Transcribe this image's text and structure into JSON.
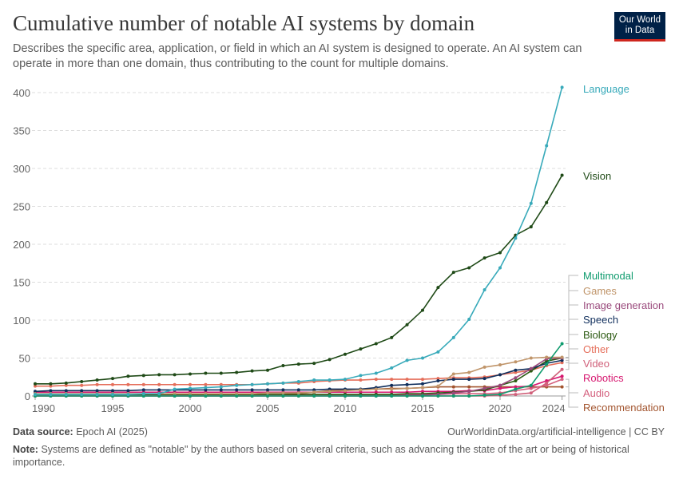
{
  "header": {
    "title": "Cumulative number of notable AI systems by domain",
    "subtitle": "Describes the specific area, application, or field in which an AI system is designed to operate. An AI system can operate in more than one domain, thus contributing to the count for multiple domains.",
    "logo": "Our World in Data"
  },
  "footer": {
    "source_label": "Data source:",
    "source": "Epoch AI (2025)",
    "url": "OurWorldinData.org/artificial-intelligence | CC BY",
    "note_label": "Note:",
    "note": "Systems are defined as \"notable\" by the authors based on several criteria, such as advancing the state of the art or being of historical importance."
  },
  "chart_data": {
    "type": "line",
    "title": "Cumulative number of notable AI systems by domain",
    "xlim": [
      1990,
      2024
    ],
    "ylim": [
      0,
      400
    ],
    "x_ticks": [
      "1990",
      "1995",
      "2000",
      "2005",
      "2010",
      "2015",
      "2020",
      "2024"
    ],
    "y_ticks": [
      "0",
      "50",
      "100",
      "150",
      "200",
      "250",
      "300",
      "350",
      "400"
    ],
    "grid": "horizontal-dashed",
    "legend": "right-labels",
    "x": [
      1990,
      1991,
      1992,
      1993,
      1994,
      1995,
      1996,
      1997,
      1998,
      1999,
      2000,
      2001,
      2002,
      2003,
      2004,
      2005,
      2006,
      2007,
      2008,
      2009,
      2010,
      2011,
      2012,
      2013,
      2014,
      2015,
      2016,
      2017,
      2018,
      2019,
      2020,
      2021,
      2022,
      2023,
      2024
    ],
    "series": [
      {
        "name": "Language",
        "color": "#38aaba",
        "values": [
          2,
          2,
          2,
          2,
          2,
          2,
          2,
          3,
          3,
          9,
          10,
          11,
          12,
          14,
          15,
          16,
          17,
          19,
          21,
          21,
          22,
          27,
          30,
          37,
          47,
          50,
          58,
          77,
          101,
          140,
          169,
          208,
          254,
          330,
          407
        ]
      },
      {
        "name": "Vision",
        "color": "#1f4a17",
        "values": [
          16,
          16,
          17,
          19,
          21,
          23,
          26,
          27,
          28,
          28,
          29,
          30,
          30,
          31,
          33,
          34,
          40,
          42,
          43,
          48,
          55,
          62,
          69,
          77,
          94,
          113,
          143,
          163,
          169,
          182,
          189,
          212,
          223,
          255,
          291
        ]
      },
      {
        "name": "Multimodal",
        "color": "#0f9b6e",
        "values": [
          0,
          0,
          0,
          0,
          0,
          0,
          0,
          0,
          0,
          0,
          0,
          0,
          0,
          0,
          0,
          0,
          0,
          0,
          0,
          0,
          0,
          0,
          0,
          0,
          0,
          0,
          0,
          0,
          0,
          1,
          2,
          9,
          14,
          42,
          69
        ]
      },
      {
        "name": "Games",
        "color": "#c0956a",
        "values": [
          3,
          3,
          3,
          3,
          3,
          3,
          3,
          3,
          3,
          3,
          3,
          3,
          3,
          3,
          3,
          4,
          4,
          4,
          5,
          6,
          7,
          8,
          9,
          9,
          10,
          11,
          13,
          29,
          31,
          38,
          41,
          45,
          50,
          51,
          51
        ]
      },
      {
        "name": "Image generation",
        "color": "#9a4a7c",
        "values": [
          0,
          0,
          0,
          0,
          0,
          0,
          0,
          0,
          0,
          0,
          0,
          0,
          0,
          0,
          0,
          0,
          0,
          0,
          0,
          0,
          0,
          0,
          0,
          0,
          1,
          1,
          2,
          4,
          6,
          10,
          14,
          24,
          36,
          49,
          50
        ]
      },
      {
        "name": "Speech",
        "color": "#0f2e5c",
        "values": [
          6,
          7,
          7,
          7,
          7,
          7,
          7,
          8,
          8,
          8,
          8,
          8,
          8,
          8,
          8,
          8,
          8,
          8,
          8,
          9,
          9,
          9,
          11,
          14,
          15,
          16,
          20,
          22,
          22,
          23,
          28,
          34,
          36,
          43,
          47
        ]
      },
      {
        "name": "Biology",
        "color": "#2c5a12",
        "values": [
          2,
          2,
          2,
          2,
          2,
          2,
          2,
          2,
          2,
          2,
          2,
          2,
          2,
          2,
          2,
          2,
          2,
          2,
          2,
          2,
          2,
          2,
          2,
          2,
          3,
          3,
          4,
          5,
          6,
          8,
          14,
          20,
          33,
          46,
          50
        ]
      },
      {
        "name": "Other",
        "color": "#e56e5a",
        "values": [
          13,
          13,
          14,
          14,
          15,
          15,
          15,
          15,
          15,
          15,
          15,
          15,
          15,
          15,
          15,
          16,
          17,
          17,
          19,
          20,
          21,
          21,
          22,
          22,
          22,
          22,
          23,
          24,
          24,
          25,
          28,
          31,
          34,
          40,
          44
        ]
      },
      {
        "name": "Video",
        "color": "#d0607a",
        "values": [
          0,
          0,
          0,
          0,
          0,
          0,
          0,
          0,
          0,
          0,
          0,
          0,
          0,
          0,
          0,
          0,
          0,
          0,
          0,
          0,
          0,
          0,
          0,
          0,
          0,
          0,
          0,
          0,
          0,
          0,
          1,
          2,
          4,
          17,
          35
        ]
      },
      {
        "name": "Robotics",
        "color": "#d6166f",
        "values": [
          5,
          5,
          5,
          5,
          5,
          5,
          5,
          5,
          5,
          5,
          5,
          5,
          5,
          5,
          5,
          5,
          5,
          5,
          5,
          5,
          5,
          5,
          5,
          5,
          5,
          6,
          6,
          6,
          7,
          7,
          10,
          12,
          13,
          20,
          26
        ]
      },
      {
        "name": "Audio",
        "color": "#d4607e",
        "values": [
          1,
          1,
          1,
          1,
          1,
          1,
          1,
          1,
          1,
          1,
          1,
          1,
          1,
          1,
          1,
          1,
          1,
          1,
          1,
          1,
          1,
          1,
          1,
          1,
          2,
          2,
          2,
          3,
          3,
          3,
          4,
          7,
          10,
          14,
          22
        ]
      },
      {
        "name": "Recommendation",
        "color": "#a2542e",
        "values": [
          0,
          0,
          0,
          0,
          0,
          0,
          0,
          0,
          0,
          0,
          0,
          0,
          0,
          0,
          0,
          1,
          2,
          3,
          5,
          7,
          8,
          8,
          9,
          10,
          10,
          11,
          12,
          12,
          12,
          12,
          12,
          12,
          12,
          12,
          12
        ]
      }
    ]
  }
}
